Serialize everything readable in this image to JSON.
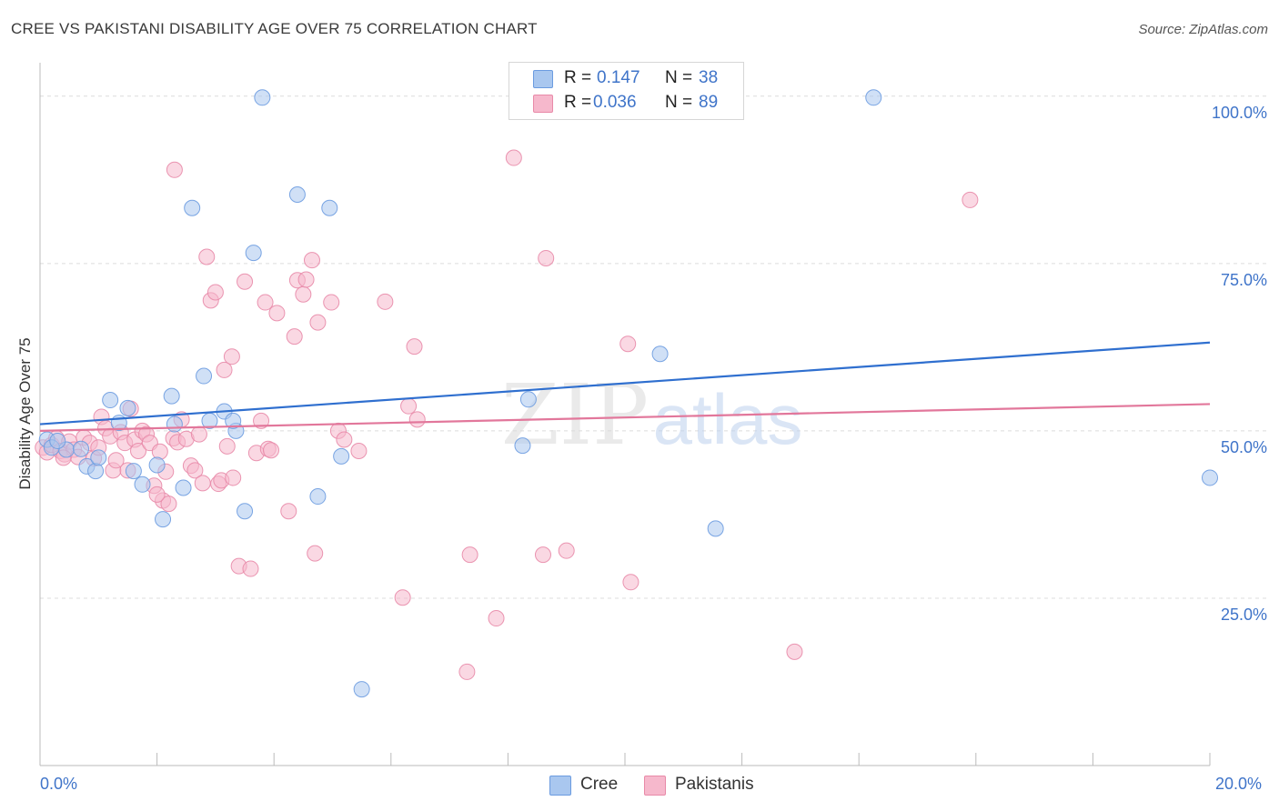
{
  "header": {
    "title": "CREE VS PAKISTANI DISABILITY AGE OVER 75 CORRELATION CHART",
    "source": "Source: ZipAtlas.com"
  },
  "legend": {
    "rows": [
      {
        "r_label": "R =",
        "r_value": "0.147",
        "n_label": "N =",
        "n_value": "38",
        "color": "#a9c7ef"
      },
      {
        "r_label": "R =",
        "r_value": "0.036",
        "n_label": "N =",
        "n_value": "89",
        "color": "#f6b8cc"
      }
    ]
  },
  "bottom_legend": [
    {
      "label": "Cree",
      "color": "#a9c7ef"
    },
    {
      "label": "Pakistanis",
      "color": "#f6b8cc"
    }
  ],
  "axes": {
    "y_label": "Disability Age Over 75",
    "x_min_label": "0.0%",
    "x_max_label": "20.0%"
  },
  "chart_data": {
    "type": "scatter",
    "title": "CREE VS PAKISTANI DISABILITY AGE OVER 75 CORRELATION CHART",
    "xlabel": "",
    "ylabel": "Disability Age Over 75",
    "xlim": [
      0,
      20
    ],
    "ylim": [
      0,
      105
    ],
    "y_ticks": [
      25,
      50,
      75,
      100
    ],
    "y_tick_labels": [
      "25.0%",
      "50.0%",
      "75.0%",
      "100.0%"
    ],
    "grid": true,
    "legend_position": "top-center",
    "watermark": "ZIPatlas",
    "series": [
      {
        "name": "Cree",
        "color": "#6b9be0",
        "fill": "#a9c7ef",
        "r": 0.147,
        "n": 38,
        "trend": {
          "x": [
            0,
            20
          ],
          "y": [
            51.0,
            63.2
          ]
        },
        "points": [
          [
            0.12,
            48.7
          ],
          [
            0.45,
            47.2
          ],
          [
            0.7,
            47.3
          ],
          [
            0.8,
            44.7
          ],
          [
            0.95,
            44.0
          ],
          [
            1.2,
            54.6
          ],
          [
            1.35,
            51.2
          ],
          [
            1.5,
            53.4
          ],
          [
            1.6,
            44.0
          ],
          [
            1.75,
            42.0
          ],
          [
            2.0,
            44.9
          ],
          [
            2.1,
            36.8
          ],
          [
            2.25,
            55.2
          ],
          [
            2.45,
            41.5
          ],
          [
            2.6,
            83.3
          ],
          [
            2.8,
            58.2
          ],
          [
            2.9,
            51.5
          ],
          [
            3.15,
            52.9
          ],
          [
            3.35,
            50.0
          ],
          [
            3.5,
            38.0
          ],
          [
            3.65,
            76.6
          ],
          [
            3.8,
            99.8
          ],
          [
            4.4,
            85.3
          ],
          [
            4.75,
            40.2
          ],
          [
            4.95,
            83.3
          ],
          [
            5.15,
            46.2
          ],
          [
            5.5,
            11.4
          ],
          [
            8.25,
            47.8
          ],
          [
            8.35,
            54.7
          ],
          [
            10.6,
            61.5
          ],
          [
            11.55,
            35.4
          ],
          [
            14.25,
            99.8
          ],
          [
            20.0,
            43.0
          ],
          [
            0.2,
            47.5
          ],
          [
            0.3,
            48.5
          ],
          [
            1.0,
            46.0
          ],
          [
            2.3,
            51.0
          ],
          [
            3.3,
            51.5
          ]
        ]
      },
      {
        "name": "Pakistanis",
        "color": "#e88aa8",
        "fill": "#f6b8cc",
        "r": 0.036,
        "n": 89,
        "trend": {
          "x": [
            0,
            20
          ],
          "y": [
            50.0,
            54.0
          ]
        },
        "points": [
          [
            0.05,
            47.5
          ],
          [
            0.12,
            46.8
          ],
          [
            0.2,
            47.9
          ],
          [
            0.28,
            48.9
          ],
          [
            0.35,
            47.0
          ],
          [
            0.42,
            46.5
          ],
          [
            0.5,
            48.4
          ],
          [
            0.58,
            47.2
          ],
          [
            0.65,
            46.1
          ],
          [
            0.75,
            49.0
          ],
          [
            0.85,
            48.2
          ],
          [
            0.92,
            45.9
          ],
          [
            1.05,
            52.1
          ],
          [
            1.12,
            50.4
          ],
          [
            1.2,
            49.2
          ],
          [
            1.25,
            44.1
          ],
          [
            1.3,
            45.6
          ],
          [
            1.38,
            49.8
          ],
          [
            1.45,
            48.2
          ],
          [
            1.5,
            44.1
          ],
          [
            1.55,
            53.3
          ],
          [
            1.62,
            48.7
          ],
          [
            1.68,
            47.0
          ],
          [
            1.75,
            50.0
          ],
          [
            1.82,
            49.5
          ],
          [
            1.88,
            48.2
          ],
          [
            1.95,
            41.8
          ],
          [
            2.05,
            46.9
          ],
          [
            2.1,
            39.6
          ],
          [
            2.15,
            43.9
          ],
          [
            2.2,
            39.1
          ],
          [
            2.28,
            48.9
          ],
          [
            2.35,
            48.3
          ],
          [
            2.42,
            51.7
          ],
          [
            2.5,
            48.8
          ],
          [
            2.58,
            44.8
          ],
          [
            2.65,
            44.1
          ],
          [
            2.72,
            49.5
          ],
          [
            2.78,
            42.2
          ],
          [
            2.85,
            76.0
          ],
          [
            2.92,
            69.5
          ],
          [
            3.0,
            70.7
          ],
          [
            3.05,
            42.1
          ],
          [
            3.1,
            42.6
          ],
          [
            3.15,
            59.1
          ],
          [
            3.2,
            47.7
          ],
          [
            3.28,
            61.1
          ],
          [
            3.4,
            29.8
          ],
          [
            3.5,
            72.3
          ],
          [
            3.6,
            29.4
          ],
          [
            3.7,
            46.7
          ],
          [
            3.78,
            51.5
          ],
          [
            3.85,
            69.2
          ],
          [
            3.9,
            47.3
          ],
          [
            3.95,
            47.1
          ],
          [
            4.05,
            67.6
          ],
          [
            4.25,
            38.0
          ],
          [
            4.35,
            64.1
          ],
          [
            4.4,
            72.5
          ],
          [
            4.5,
            70.4
          ],
          [
            4.55,
            72.6
          ],
          [
            4.65,
            75.5
          ],
          [
            4.7,
            31.7
          ],
          [
            4.75,
            66.2
          ],
          [
            4.98,
            69.2
          ],
          [
            5.1,
            50.0
          ],
          [
            5.2,
            48.7
          ],
          [
            5.45,
            47.0
          ],
          [
            5.9,
            69.3
          ],
          [
            6.2,
            25.1
          ],
          [
            6.3,
            53.7
          ],
          [
            6.4,
            62.6
          ],
          [
            6.45,
            51.7
          ],
          [
            7.3,
            14.0
          ],
          [
            7.35,
            31.5
          ],
          [
            7.8,
            22.0
          ],
          [
            8.1,
            90.8
          ],
          [
            8.6,
            31.5
          ],
          [
            8.65,
            75.8
          ],
          [
            9.0,
            32.1
          ],
          [
            10.05,
            63.0
          ],
          [
            10.1,
            27.4
          ],
          [
            12.9,
            17.0
          ],
          [
            15.9,
            84.5
          ],
          [
            2.3,
            89.0
          ],
          [
            1.0,
            47.5
          ],
          [
            0.4,
            46.0
          ],
          [
            2.0,
            40.5
          ],
          [
            3.3,
            43.0
          ]
        ]
      }
    ]
  }
}
